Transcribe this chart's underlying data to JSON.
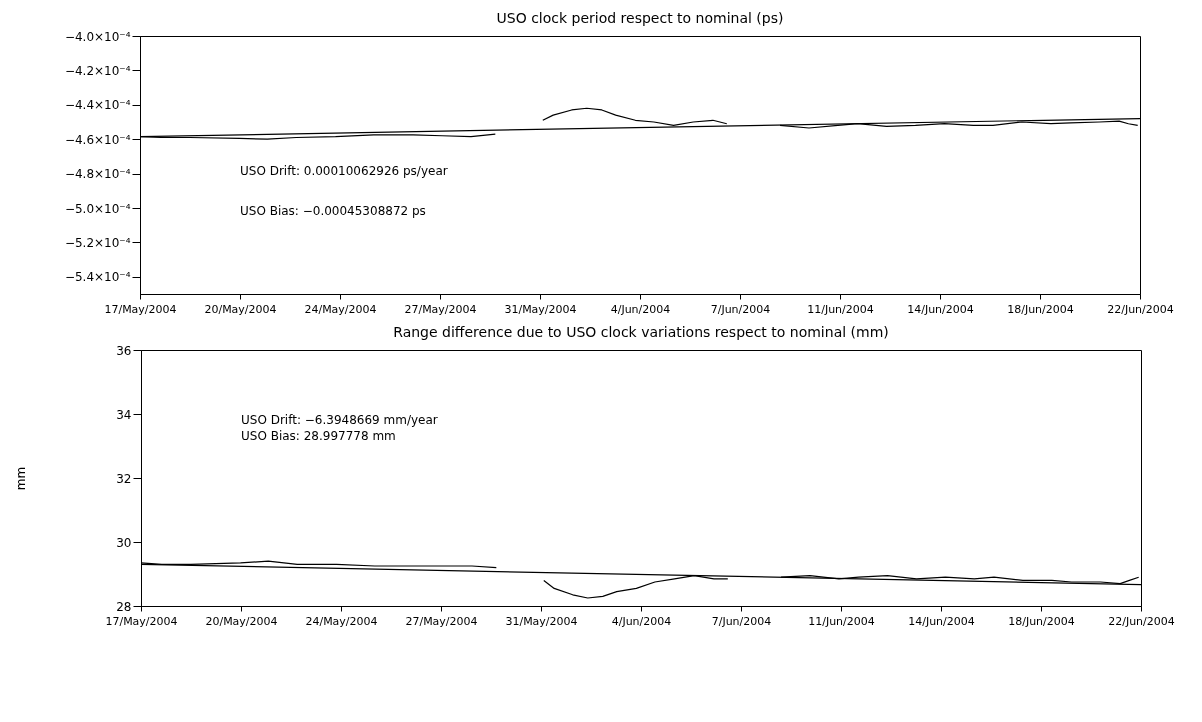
{
  "chart_data": [
    {
      "type": "line",
      "title": "USO clock period respect to nominal (ps)",
      "annotations": [
        "USO Drift: 0.00010062926 ps/year",
        "USO Bias: −0.00045308872 ps"
      ],
      "xlim": [
        "2004-05-17T00:00",
        "2004-06-22T00:00"
      ],
      "xticks": [
        {
          "value": "2004-05-17T00:00",
          "label": "17/May/2004"
        },
        {
          "value": "2004-05-20T14:24",
          "label": "20/May/2004"
        },
        {
          "value": "2004-05-24T04:48",
          "label": "24/May/2004"
        },
        {
          "value": "2004-05-27T19:12",
          "label": "27/May/2004"
        },
        {
          "value": "2004-05-31T09:36",
          "label": "31/May/2004"
        },
        {
          "value": "2004-06-04T00:00",
          "label": "4/Jun/2004"
        },
        {
          "value": "2004-06-07T14:24",
          "label": "7/Jun/2004"
        },
        {
          "value": "2004-06-11T04:48",
          "label": "11/Jun/2004"
        },
        {
          "value": "2004-06-14T19:12",
          "label": "14/Jun/2004"
        },
        {
          "value": "2004-06-18T09:36",
          "label": "18/Jun/2004"
        },
        {
          "value": "2004-06-22T00:00",
          "label": "22/Jun/2004"
        }
      ],
      "ylim": [
        -0.00055,
        -0.0004
      ],
      "yticks": [
        {
          "value": -0.0004,
          "label": "−4.0×10⁻⁴"
        },
        {
          "value": -0.00042,
          "label": "−4.2×10⁻⁴"
        },
        {
          "value": -0.00044,
          "label": "−4.4×10⁻⁴"
        },
        {
          "value": -0.00046,
          "label": "−4.6×10⁻⁴"
        },
        {
          "value": -0.00048,
          "label": "−4.8×10⁻⁴"
        },
        {
          "value": -0.0005,
          "label": "−5.0×10⁻⁴"
        },
        {
          "value": -0.00052,
          "label": "−5.2×10⁻⁴"
        },
        {
          "value": -0.00054,
          "label": "−5.4×10⁻⁴"
        }
      ],
      "series": [
        {
          "color": "#000000",
          "x": [
            "2004-05-17T00:00",
            "2004-05-17T18:00",
            "2004-05-18T19:00",
            "2004-05-20T14:00",
            "2004-05-21T14:00",
            "2004-05-22T15:00",
            "2004-05-24T01:00",
            "2004-05-25T10:00",
            "2004-05-26T20:00",
            "2004-05-27T21:00",
            "2004-05-28T22:00",
            "2004-05-29T19:00",
            "2004-05-30T12:00",
            "2004-05-31T12:00",
            "2004-05-31T21:00",
            "2004-06-01T13:00",
            "2004-06-02T02:00",
            "2004-06-02T15:00",
            "2004-06-03T03:00",
            "2004-06-03T20:00",
            "2004-06-04T12:00",
            "2004-06-05T05:00",
            "2004-06-05T22:00",
            "2004-06-06T15:00",
            "2004-06-07T03:00",
            "2004-06-08T00:00",
            "2004-06-09T01:00",
            "2004-06-10T02:00",
            "2004-06-11T03:00",
            "2004-06-11T20:00",
            "2004-06-12T21:00",
            "2004-06-13T22:00",
            "2004-06-14T23:00",
            "2004-06-16T00:00",
            "2004-06-16T17:00",
            "2004-06-17T18:00",
            "2004-06-18T19:00",
            "2004-06-19T12:00",
            "2004-06-20T13:00",
            "2004-06-21T06:00",
            "2004-06-21T14:00",
            "2004-06-21T22:00"
          ],
          "values": [
            -0.0004585,
            -0.000459,
            -0.000459,
            -0.0004595,
            -0.00046,
            -0.000459,
            -0.0004585,
            -0.0004575,
            -0.0004575,
            -0.000458,
            -0.0004585,
            -0.000457,
            null,
            -0.000449,
            -0.000446,
            -0.000443,
            -0.000442,
            -0.000443,
            -0.000446,
            -0.000449,
            -0.00045,
            -0.000452,
            -0.00045,
            -0.000449,
            -0.000451,
            null,
            -0.000452,
            -0.0004535,
            -0.000452,
            -0.000451,
            -0.0004525,
            -0.000452,
            -0.000451,
            -0.000452,
            -0.000452,
            -0.00045,
            -0.000451,
            -0.0004505,
            -0.00045,
            -0.0004495,
            -0.000451,
            -0.000452
          ]
        },
        {
          "color": "#000000",
          "x": [
            "2004-05-17T00:00",
            "2004-06-22T00:00"
          ],
          "values": [
            -0.0004585,
            -0.000448
          ]
        }
      ]
    },
    {
      "type": "line",
      "title": "Range difference due to USO clock variations respect to nominal (mm)",
      "ylabel": "mm",
      "annotations": [
        "USO Drift: −6.3948669 mm/year",
        "USO Bias: 28.997778 mm"
      ],
      "xlim": [
        "2004-05-17T00:00",
        "2004-06-22T00:00"
      ],
      "xticks": [
        {
          "value": "2004-05-17T00:00",
          "label": "17/May/2004"
        },
        {
          "value": "2004-05-20T14:24",
          "label": "20/May/2004"
        },
        {
          "value": "2004-05-24T04:48",
          "label": "24/May/2004"
        },
        {
          "value": "2004-05-27T19:12",
          "label": "27/May/2004"
        },
        {
          "value": "2004-05-31T09:36",
          "label": "31/May/2004"
        },
        {
          "value": "2004-06-04T00:00",
          "label": "4/Jun/2004"
        },
        {
          "value": "2004-06-07T14:24",
          "label": "7/Jun/2004"
        },
        {
          "value": "2004-06-11T04:48",
          "label": "11/Jun/2004"
        },
        {
          "value": "2004-06-14T19:12",
          "label": "14/Jun/2004"
        },
        {
          "value": "2004-06-18T09:36",
          "label": "18/Jun/2004"
        },
        {
          "value": "2004-06-22T00:00",
          "label": "22/Jun/2004"
        }
      ],
      "ylim": [
        28,
        36
      ],
      "yticks": [
        28,
        30,
        32,
        34,
        36
      ],
      "series": [
        {
          "color": "#000000",
          "x": [
            "2004-05-17T00:00",
            "2004-05-17T18:00",
            "2004-05-18T19:00",
            "2004-05-20T14:00",
            "2004-05-21T14:00",
            "2004-05-22T15:00",
            "2004-05-24T01:00",
            "2004-05-25T10:00",
            "2004-05-26T20:00",
            "2004-05-27T21:00",
            "2004-05-28T22:00",
            "2004-05-29T19:00",
            "2004-05-30T12:00",
            "2004-05-31T12:00",
            "2004-05-31T21:00",
            "2004-06-01T13:00",
            "2004-06-02T02:00",
            "2004-06-02T15:00",
            "2004-06-03T03:00",
            "2004-06-03T20:00",
            "2004-06-04T12:00",
            "2004-06-05T05:00",
            "2004-06-05T22:00",
            "2004-06-06T15:00",
            "2004-06-07T03:00",
            "2004-06-08T00:00",
            "2004-06-09T01:00",
            "2004-06-10T02:00",
            "2004-06-11T03:00",
            "2004-06-11T20:00",
            "2004-06-12T21:00",
            "2004-06-13T22:00",
            "2004-06-14T23:00",
            "2004-06-16T00:00",
            "2004-06-16T17:00",
            "2004-06-17T18:00",
            "2004-06-18T19:00",
            "2004-06-19T12:00",
            "2004-06-20T13:00",
            "2004-06-21T06:00",
            "2004-06-21T14:00",
            "2004-06-21T22:00"
          ],
          "values": [
            29.35,
            29.3,
            29.3,
            29.35,
            29.4,
            29.3,
            29.3,
            29.25,
            29.25,
            29.25,
            29.25,
            29.2,
            null,
            28.8,
            28.55,
            28.35,
            28.25,
            28.3,
            28.45,
            28.55,
            28.75,
            28.85,
            28.95,
            28.85,
            28.85,
            null,
            28.9,
            28.95,
            28.85,
            28.9,
            28.95,
            28.85,
            28.9,
            28.85,
            28.9,
            28.8,
            28.8,
            28.75,
            28.75,
            28.7,
            28.8,
            28.9
          ]
        },
        {
          "color": "#000000",
          "x": [
            "2004-05-17T00:00",
            "2004-06-22T00:00"
          ],
          "values": [
            29.3,
            28.67
          ]
        }
      ]
    }
  ]
}
